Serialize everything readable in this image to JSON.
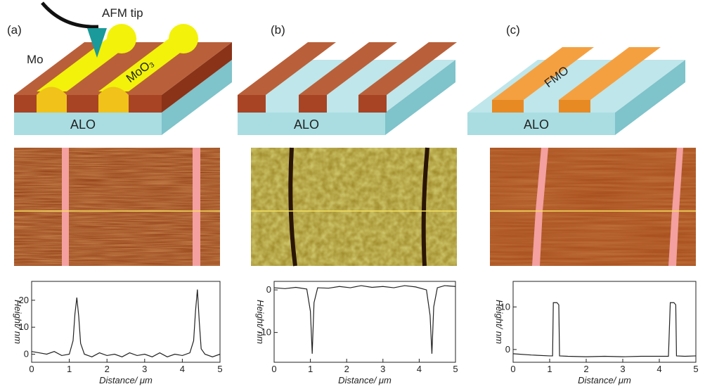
{
  "figure": {
    "panels": [
      {
        "label": "(a)",
        "tip": "AFM tip",
        "metal": "Mo",
        "film": "MoO₃",
        "substrate": "ALO"
      },
      {
        "label": "(b)",
        "substrate": "ALO"
      },
      {
        "label": "(c)",
        "film": "FMO",
        "substrate": "ALO"
      }
    ]
  },
  "chart_data": [
    {
      "type": "line",
      "x_label": "Distance/ μm",
      "y_label": "Height/ nm",
      "x": [
        0,
        0.2,
        0.4,
        0.6,
        0.8,
        1.0,
        1.1,
        1.15,
        1.2,
        1.25,
        1.3,
        1.4,
        1.6,
        1.8,
        2.0,
        2.2,
        2.4,
        2.6,
        2.8,
        3.0,
        3.2,
        3.4,
        3.6,
        3.8,
        4.0,
        4.2,
        4.3,
        4.35,
        4.4,
        4.45,
        4.5,
        4.6,
        4.8,
        5.0
      ],
      "series": [
        {
          "color": "#222222",
          "values": [
            1,
            0.5,
            0,
            1,
            -0.5,
            0,
            5,
            15,
            21,
            14,
            4,
            0,
            -1,
            0.5,
            -0.5,
            0,
            -1,
            0.5,
            -0.5,
            0,
            -1,
            0.5,
            -1,
            0,
            -0.5,
            0.5,
            5,
            16,
            24,
            12,
            2,
            0,
            -1,
            0
          ]
        }
      ],
      "xlim": [
        0,
        5
      ],
      "xticks": [
        0,
        1,
        2,
        3,
        4,
        5
      ],
      "ylim": [
        -3,
        27
      ],
      "yticks": [
        0,
        10,
        20
      ]
    },
    {
      "type": "line",
      "x_label": "Distance/ μm",
      "y_label": "Height/ nm",
      "x": [
        0,
        0.3,
        0.6,
        0.9,
        1.0,
        1.05,
        1.1,
        1.2,
        1.5,
        1.8,
        2.1,
        2.4,
        2.7,
        3.0,
        3.3,
        3.6,
        3.9,
        4.2,
        4.3,
        4.35,
        4.4,
        4.5,
        4.7,
        5.0
      ],
      "series": [
        {
          "color": "#222222",
          "values": [
            0.5,
            0.3,
            0.6,
            0.2,
            -5,
            -15,
            -3,
            0.5,
            0.4,
            0.8,
            0.5,
            1,
            0.6,
            0.8,
            0.5,
            1,
            0.7,
            0,
            -6,
            -15,
            -4,
            0.5,
            1,
            0.8
          ]
        }
      ],
      "xlim": [
        0,
        5
      ],
      "xticks": [
        0,
        1,
        2,
        3,
        4,
        5
      ],
      "ylim": [
        -17,
        2
      ],
      "yticks": [
        -10,
        0
      ]
    },
    {
      "type": "line",
      "x_label": "Distance/ μm",
      "y_label": "Height/ nm",
      "x": [
        0,
        0.5,
        1.0,
        1.08,
        1.1,
        1.2,
        1.25,
        1.27,
        1.5,
        2.0,
        2.5,
        3.0,
        3.5,
        4.0,
        4.25,
        4.3,
        4.4,
        4.45,
        4.47,
        4.7,
        5.0
      ],
      "series": [
        {
          "color": "#222222",
          "values": [
            -1,
            -1.3,
            -1.5,
            -1.5,
            11,
            11,
            10.5,
            -1.5,
            -1.6,
            -1.7,
            -1.6,
            -1.7,
            -1.6,
            -1.6,
            -1.6,
            11,
            11,
            10.5,
            -1.5,
            -1.6,
            -1.5
          ]
        }
      ],
      "xlim": [
        0,
        5
      ],
      "xticks": [
        0,
        1,
        2,
        3,
        4,
        5
      ],
      "ylim": [
        -3,
        16
      ],
      "yticks": [
        0,
        10
      ]
    }
  ]
}
